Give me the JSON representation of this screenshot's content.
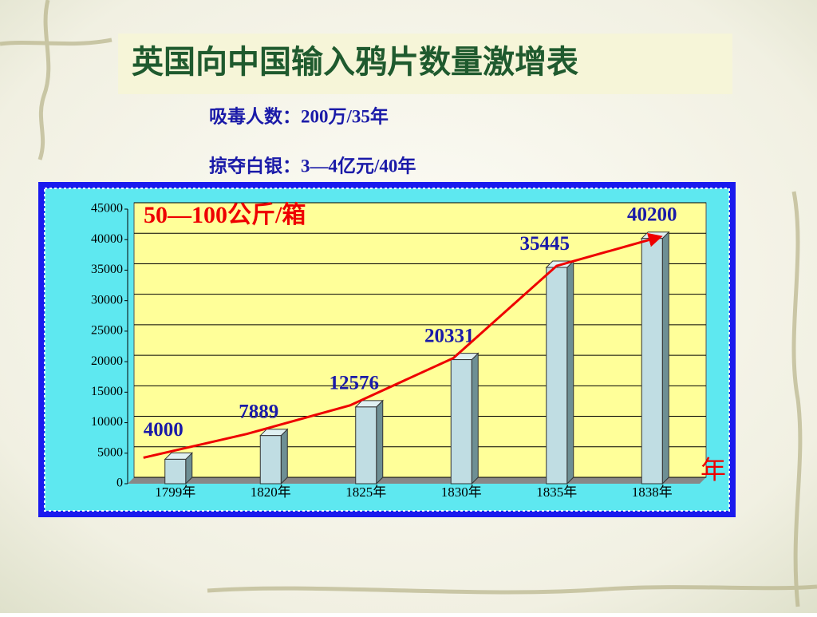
{
  "title": "英国向中国输入鸦片数量激增表",
  "notes": [
    "吸毒人数：200万/35年",
    "掠夺白银：3—4亿元/40年"
  ],
  "chart_data": {
    "type": "bar",
    "annotation": "50—100公斤/箱",
    "x_unit": "年",
    "categories": [
      "1799年",
      "1820年",
      "1825年",
      "1830年",
      "1835年",
      "1838年"
    ],
    "values": [
      4000,
      7889,
      12576,
      20331,
      35445,
      40200
    ],
    "color": "#c0dde3",
    "line_color": "#ee0000",
    "ylim": [
      0,
      45000
    ],
    "yticks": [
      0,
      5000,
      10000,
      15000,
      20000,
      25000,
      30000,
      35000,
      40000,
      45000
    ],
    "grid": true
  }
}
